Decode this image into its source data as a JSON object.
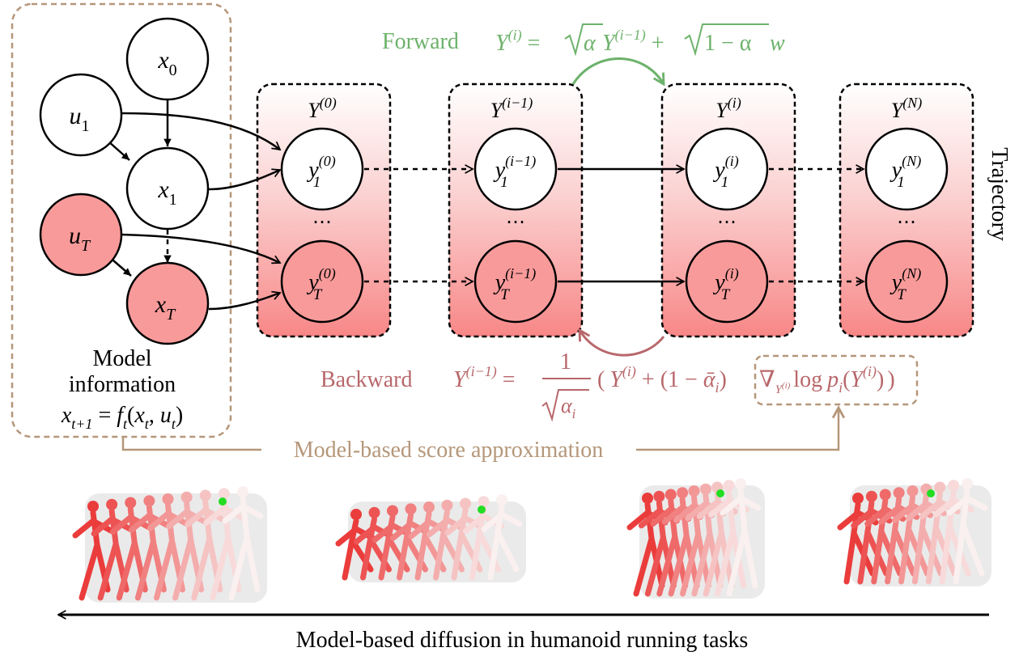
{
  "colors": {
    "pink_node": "#f99a9a",
    "panel_top": "#ffffff",
    "panel_bottom": "#f88787",
    "forward_green": "#6db26b",
    "backward_red": "#b8676b",
    "brown": "#b5977a",
    "black": "#000000"
  },
  "model_panel": {
    "nodes": {
      "x0": {
        "base": "x",
        "sub": "0"
      },
      "u1": {
        "base": "u",
        "sub": "1"
      },
      "x1": {
        "base": "x",
        "sub": "1"
      },
      "uT": {
        "base": "u",
        "sub": "T"
      },
      "xT": {
        "base": "x",
        "sub": "T"
      }
    },
    "caption_line1": "Model",
    "caption_line2": "information",
    "equation": {
      "lhs": "x",
      "lhs_sub": "t+1",
      "eq": " = ",
      "f": "f",
      "f_sub": "t",
      "open": "(",
      "x": "x",
      "x_sub": "t",
      "comma": ", ",
      "u": "u",
      "u_sub": "t",
      "close": ")"
    }
  },
  "panels": [
    {
      "title_base": "Y",
      "title_sup": "(0)",
      "top_node": {
        "base": "y",
        "sup": "(0)",
        "sub": "1"
      },
      "bottom_node": {
        "base": "y",
        "sup": "(0)",
        "sub": "T"
      },
      "ellipsis": "⋯"
    },
    {
      "title_base": "Y",
      "title_sup": "(i−1)",
      "top_node": {
        "base": "y",
        "sup": "(i−1)",
        "sub": "1"
      },
      "bottom_node": {
        "base": "y",
        "sup": "(i−1)",
        "sub": "T"
      },
      "ellipsis": "⋯"
    },
    {
      "title_base": "Y",
      "title_sup": "(i)",
      "top_node": {
        "base": "y",
        "sup": "(i)",
        "sub": "1"
      },
      "bottom_node": {
        "base": "y",
        "sup": "(i)",
        "sub": "T"
      },
      "ellipsis": "⋯"
    },
    {
      "title_base": "Y",
      "title_sup": "(N)",
      "top_node": {
        "base": "y",
        "sup": "(N)",
        "sub": "1"
      },
      "bottom_node": {
        "base": "y",
        "sup": "(N)",
        "sub": "T"
      },
      "ellipsis": "⋯"
    }
  ],
  "trajectory_label": "Trajectory",
  "forward": {
    "label": "Forward",
    "eq": {
      "Y": "Y",
      "sup1": "(i)",
      "equals": " = ",
      "sqrt1": "α",
      "Y2": "Y",
      "sup2": "(i−1)",
      "plus": " + ",
      "sqrt2": "1 − α",
      "w": "w"
    }
  },
  "backward": {
    "label": "Backward",
    "eq": {
      "Y": "Y",
      "sup1": "(i−1)",
      "equals": " = ",
      "num": "1",
      "den": "α",
      "den_sub": "i",
      "paren_open": "(",
      "Y2": "Y",
      "sup2": "(i)",
      "plus": " + (1 − ",
      "alpha_bar": "ᾱ",
      "alpha_sub": "i",
      "close1": ")",
      "nabla": "∇",
      "nabla_sub_base": "Y",
      "nabla_sub_sup": "(i)",
      "log": "log",
      "p": "p",
      "p_sub": "i",
      "open2": "(",
      "Y3": "Y",
      "sup3": "(i)",
      "close2": ")",
      "paren_close": ")"
    }
  },
  "score_label": "Model-based score approximation",
  "bottom_caption": "Model-based diffusion in humanoid running tasks"
}
